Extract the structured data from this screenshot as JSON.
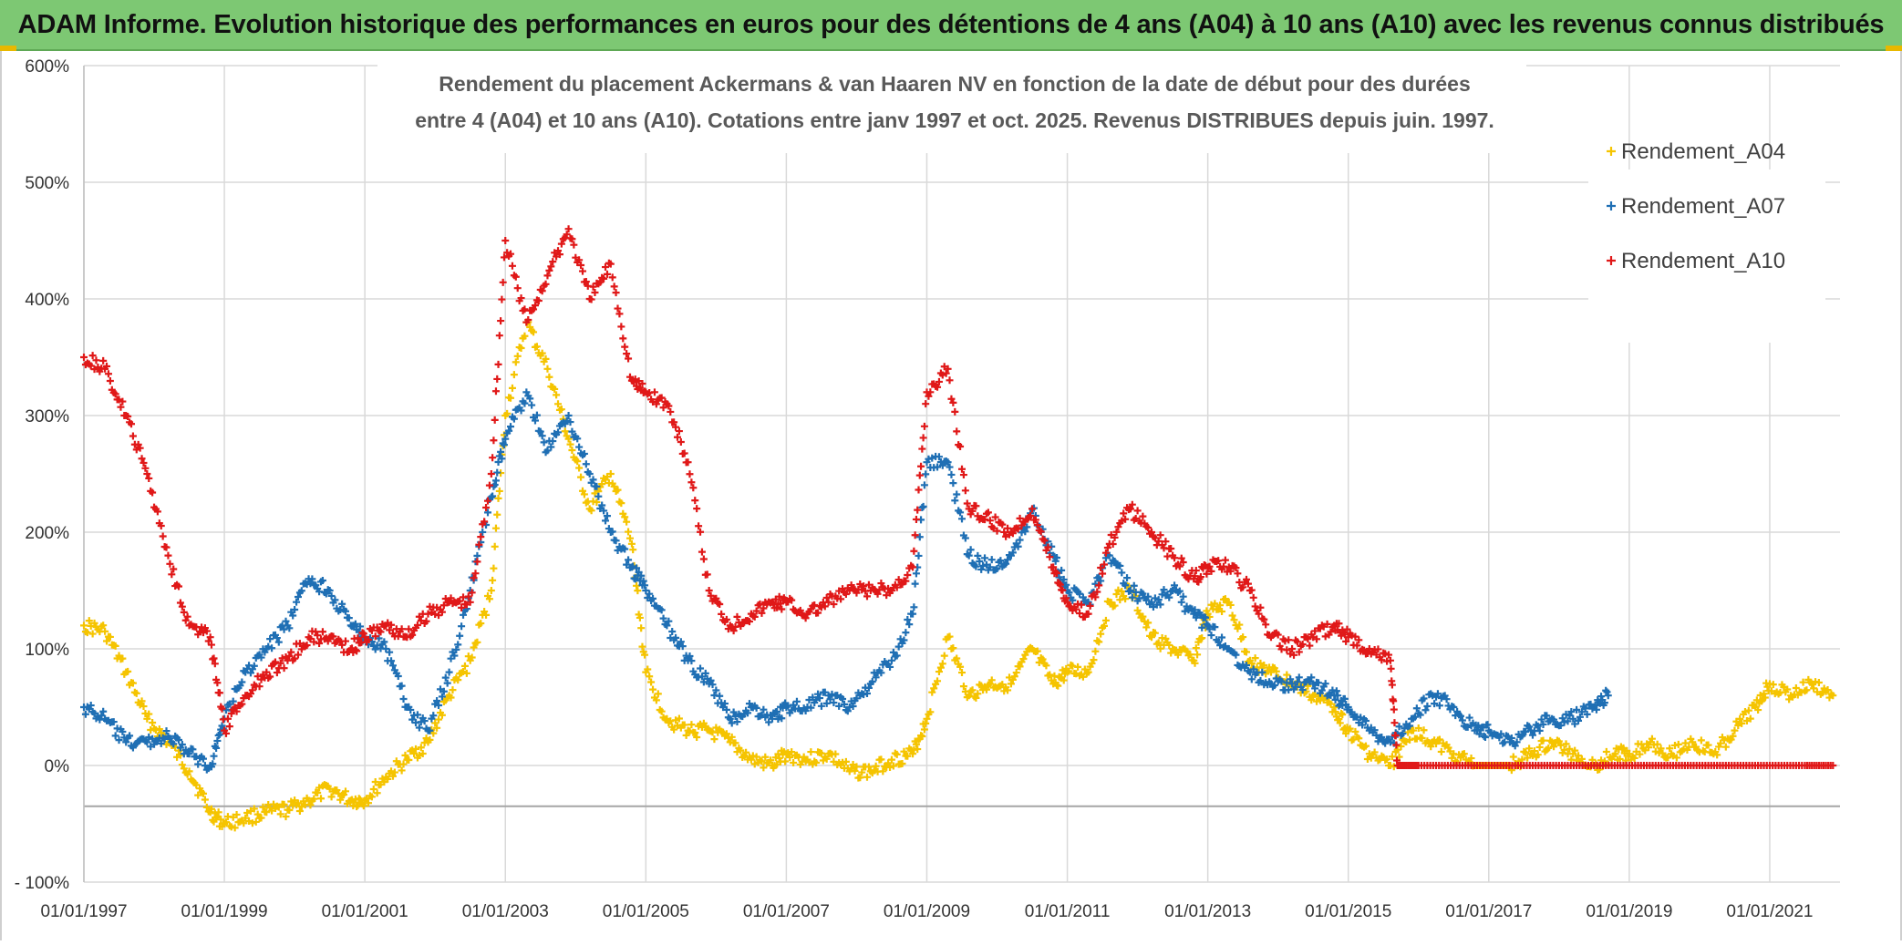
{
  "banner": {
    "title": "ADAM Informe. Evolution historique des performances en euros pour des détentions de 4 ans (A04) à 10 ans (A10) avec les revenus connus distribués"
  },
  "chart_data": {
    "type": "scatter",
    "title_line1": "Rendement du placement Ackermans & van Haaren NV en fonction de la date de début pour des durées",
    "title_line2": "entre 4 (A04) et 10 ans (A10). Cotations entre janv 1997 et oct. 2025. Revenus DISTRIBUES depuis juin. 1997.",
    "xlabel": "",
    "ylabel": "",
    "x_range": [
      1997.0,
      2022.0
    ],
    "ylim": [
      -100,
      600
    ],
    "y_ticks": [
      600,
      500,
      400,
      300,
      200,
      100,
      0,
      -100
    ],
    "y_tick_labels": [
      "600%",
      "500%",
      "400%",
      "300%",
      "200%",
      "100%",
      "0%",
      "- 100%"
    ],
    "x_ticks": [
      1997,
      1999,
      2001,
      2003,
      2005,
      2007,
      2009,
      2011,
      2013,
      2015,
      2017,
      2019,
      2021
    ],
    "x_tick_labels": [
      "01/01/1997",
      "01/01/1999",
      "01/01/2001",
      "01/01/2003",
      "01/01/2005",
      "01/01/2007",
      "01/01/2009",
      "01/01/2011",
      "01/01/2013",
      "01/01/2015",
      "01/01/2017",
      "01/01/2019",
      "01/01/2021"
    ],
    "grid": true,
    "legend_position": "right",
    "series": [
      {
        "name": "Rendement_A04",
        "color": "#f5c400",
        "x": [
          1997.0,
          1997.3,
          1997.6,
          1997.9,
          1998.2,
          1998.5,
          1998.8,
          1999.0,
          1999.3,
          1999.6,
          1999.9,
          2000.2,
          2000.5,
          2000.8,
          2001.0,
          2001.3,
          2001.6,
          2001.9,
          2002.2,
          2002.5,
          2002.8,
          2003.0,
          2003.3,
          2003.6,
          2003.9,
          2004.2,
          2004.5,
          2004.8,
          2005.0,
          2005.3,
          2005.6,
          2005.9,
          2006.2,
          2006.5,
          2006.8,
          2007.0,
          2007.3,
          2007.6,
          2007.9,
          2008.2,
          2008.5,
          2008.8,
          2009.0,
          2009.3,
          2009.6,
          2009.9,
          2010.2,
          2010.5,
          2010.8,
          2011.0,
          2011.3,
          2011.6,
          2011.9,
          2012.2,
          2012.5,
          2012.8,
          2013.0,
          2013.3,
          2013.6,
          2013.9,
          2014.2,
          2014.5,
          2014.8,
          2015.0,
          2015.3,
          2015.6,
          2015.9,
          2016.2,
          2016.5,
          2016.8,
          2017.0,
          2017.3,
          2017.6,
          2017.9,
          2018.2,
          2018.5,
          2018.8,
          2019.0,
          2019.3,
          2019.6,
          2019.9,
          2020.2,
          2020.5,
          2020.8,
          2021.0,
          2021.3,
          2021.6,
          2021.9
        ],
        "values": [
          120,
          115,
          80,
          40,
          20,
          -5,
          -40,
          -50,
          -45,
          -40,
          -38,
          -30,
          -20,
          -30,
          -30,
          -10,
          5,
          20,
          60,
          90,
          150,
          300,
          380,
          340,
          280,
          220,
          250,
          190,
          80,
          40,
          30,
          30,
          20,
          5,
          0,
          10,
          5,
          10,
          -5,
          -5,
          5,
          10,
          40,
          110,
          60,
          70,
          70,
          100,
          70,
          80,
          80,
          140,
          150,
          110,
          100,
          90,
          130,
          140,
          90,
          80,
          70,
          60,
          50,
          30,
          10,
          0,
          30,
          20,
          10,
          0,
          0,
          0,
          10,
          20,
          10,
          0,
          10,
          10,
          20,
          10,
          20,
          10,
          30,
          50,
          70,
          60,
          70,
          60
        ]
      },
      {
        "name": "Rendement_A07",
        "color": "#1f6fb4",
        "x": [
          1997.0,
          1997.3,
          1997.6,
          1997.9,
          1998.2,
          1998.5,
          1998.8,
          1999.0,
          1999.3,
          1999.6,
          1999.9,
          2000.2,
          2000.5,
          2000.8,
          2001.0,
          2001.3,
          2001.6,
          2001.9,
          2002.2,
          2002.5,
          2002.8,
          2003.0,
          2003.3,
          2003.6,
          2003.9,
          2004.2,
          2004.5,
          2004.8,
          2005.0,
          2005.3,
          2005.6,
          2005.9,
          2006.2,
          2006.5,
          2006.8,
          2007.0,
          2007.3,
          2007.6,
          2007.9,
          2008.2,
          2008.5,
          2008.8,
          2009.0,
          2009.3,
          2009.6,
          2009.9,
          2010.2,
          2010.5,
          2010.8,
          2011.0,
          2011.3,
          2011.6,
          2011.9,
          2012.2,
          2012.5,
          2012.8,
          2013.0,
          2013.3,
          2013.6,
          2013.9,
          2014.2,
          2014.5,
          2014.8,
          2015.0,
          2015.3,
          2015.6,
          2015.9,
          2016.2,
          2016.5,
          2016.8,
          2017.0,
          2017.3,
          2017.6,
          2017.9,
          2018.2,
          2018.5,
          2018.7
        ],
        "values": [
          50,
          40,
          20,
          20,
          25,
          10,
          0,
          40,
          80,
          100,
          120,
          160,
          150,
          120,
          110,
          100,
          50,
          30,
          80,
          150,
          230,
          280,
          320,
          270,
          300,
          250,
          200,
          170,
          150,
          120,
          90,
          70,
          40,
          50,
          40,
          50,
          50,
          60,
          50,
          70,
          90,
          130,
          260,
          260,
          180,
          170,
          180,
          220,
          180,
          150,
          140,
          180,
          150,
          140,
          150,
          130,
          120,
          100,
          80,
          70,
          70,
          70,
          60,
          50,
          30,
          20,
          40,
          60,
          50,
          30,
          30,
          20,
          30,
          40,
          40,
          50,
          60
        ]
      },
      {
        "name": "Rendement_A10",
        "color": "#e01818",
        "x": [
          1997.0,
          1997.3,
          1997.6,
          1997.9,
          1998.2,
          1998.5,
          1998.8,
          1999.0,
          1999.3,
          1999.6,
          1999.9,
          2000.2,
          2000.5,
          2000.8,
          2001.0,
          2001.3,
          2001.6,
          2001.9,
          2002.2,
          2002.5,
          2002.8,
          2003.0,
          2003.3,
          2003.6,
          2003.9,
          2004.2,
          2004.5,
          2004.8,
          2005.0,
          2005.3,
          2005.6,
          2005.9,
          2006.2,
          2006.5,
          2006.8,
          2007.0,
          2007.3,
          2007.6,
          2007.9,
          2008.2,
          2008.5,
          2008.8,
          2009.0,
          2009.3,
          2009.6,
          2009.9,
          2010.2,
          2010.5,
          2010.8,
          2011.0,
          2011.3,
          2011.6,
          2011.9,
          2012.2,
          2012.5,
          2012.8,
          2013.0,
          2013.3,
          2013.6,
          2013.9,
          2014.2,
          2014.5,
          2014.8,
          2015.0,
          2015.3,
          2015.6,
          2015.7,
          2016.0,
          2016.5,
          2017.0,
          2017.5,
          2018.0,
          2018.5,
          2019.0,
          2019.5,
          2020.0,
          2020.5,
          2021.0,
          2021.5,
          2021.9
        ],
        "values": [
          350,
          340,
          300,
          250,
          180,
          120,
          110,
          30,
          60,
          80,
          90,
          110,
          110,
          100,
          110,
          120,
          110,
          130,
          140,
          140,
          250,
          450,
          380,
          420,
          460,
          400,
          430,
          330,
          320,
          310,
          260,
          150,
          120,
          130,
          140,
          140,
          130,
          140,
          150,
          150,
          150,
          170,
          320,
          340,
          220,
          210,
          200,
          220,
          170,
          140,
          130,
          190,
          220,
          200,
          180,
          160,
          170,
          170,
          150,
          110,
          100,
          110,
          120,
          110,
          100,
          90,
          0,
          0,
          0,
          0,
          0,
          0,
          0,
          0,
          0,
          0,
          0,
          0,
          0,
          0
        ]
      }
    ]
  }
}
